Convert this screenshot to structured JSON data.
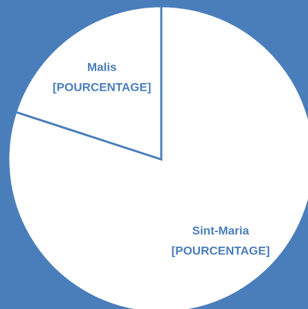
{
  "chart_data": {
    "type": "pie",
    "categories": [
      "Sint-Maria",
      "Malis"
    ],
    "values": [
      80,
      20
    ],
    "value_labels": [
      "[POURCENTAGE]",
      "[POURCENTAGE]"
    ],
    "colors": [
      "#ffffff",
      "#ffffff"
    ],
    "background": "#4a7ebb"
  }
}
